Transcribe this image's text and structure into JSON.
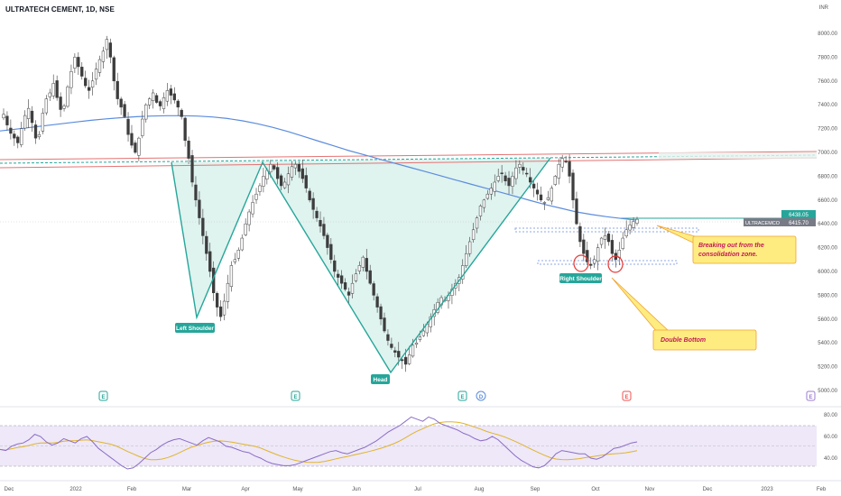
{
  "header": {
    "title": "ULTRATECH CEMENT, 1D, NSE",
    "currency": "INR"
  },
  "chart_data": {
    "type": "candlestick",
    "title": "ULTRATECH CEMENT, 1D, NSE",
    "currency": "INR",
    "symbol": "ULTRACEMCO",
    "price_axis": {
      "ticks": [
        "8000.00",
        "7800.00",
        "7600.00",
        "7400.00",
        "7200.00",
        "7000.00",
        "6800.00",
        "6600.00",
        "6400.00",
        "6200.00",
        "6000.00",
        "5800.00",
        "5600.00",
        "5400.00",
        "5200.00",
        "5000.00"
      ],
      "range": [
        4900,
        8150
      ]
    },
    "time_axis": {
      "ticks": [
        "Dec",
        "2022",
        "Feb",
        "Mar",
        "Apr",
        "May",
        "Jun",
        "Jul",
        "Aug",
        "Sep",
        "Oct",
        "Nov",
        "Dec",
        "2023",
        "Feb"
      ]
    },
    "price_labels": [
      {
        "text": "6438.05",
        "color": "#26a69a",
        "value": 6438.05
      },
      {
        "text": "6415.70",
        "color": "#787b86",
        "value": 6415.7
      }
    ],
    "symbol_label": "ULTRACEMCO",
    "rsi": {
      "ticks": [
        "80.00",
        "60.00",
        "40.00"
      ],
      "bands": [
        70,
        30
      ],
      "mid": 50
    },
    "closes": [
      7320,
      7230,
      7160,
      7120,
      7080,
      7200,
      7310,
      7370,
      7250,
      7120,
      7150,
      7330,
      7450,
      7500,
      7580,
      7460,
      7360,
      7390,
      7550,
      7680,
      7800,
      7720,
      7640,
      7560,
      7520,
      7600,
      7700,
      7780,
      7850,
      7950,
      7800,
      7600,
      7450,
      7380,
      7300,
      7150,
      7060,
      7000,
      7120,
      7280,
      7400,
      7450,
      7500,
      7420,
      7390,
      7460,
      7520,
      7480,
      7440,
      7380,
      7300,
      7100,
      6950,
      6750,
      6600,
      6450,
      6300,
      6150,
      6000,
      5820,
      5700,
      5620,
      5750,
      5900,
      6050,
      6100,
      6180,
      6280,
      6400,
      6500,
      6580,
      6650,
      6720,
      6800,
      6850,
      6900,
      6860,
      6780,
      6720,
      6750,
      6820,
      6880,
      6900,
      6840,
      6780,
      6700,
      6600,
      6520,
      6450,
      6380,
      6300,
      6200,
      6100,
      6000,
      5950,
      5900,
      5850,
      5800,
      5900,
      5980,
      6050,
      6120,
      6000,
      5900,
      5800,
      5700,
      5600,
      5500,
      5420,
      5360,
      5320,
      5280,
      5250,
      5220,
      5300,
      5380,
      5400,
      5450,
      5500,
      5560,
      5620,
      5680,
      5740,
      5780,
      5760,
      5800,
      5850,
      5900,
      5950,
      6050,
      6150,
      6250,
      6350,
      6450,
      6550,
      6600,
      6650,
      6700,
      6750,
      6800,
      6820,
      6760,
      6720,
      6800,
      6870,
      6900,
      6850,
      6820,
      6750,
      6700,
      6650,
      6600,
      6580,
      6620,
      6700,
      6800,
      6900,
      6950,
      6920,
      6800,
      6600,
      6400,
      6250,
      6150,
      6080,
      6050,
      6100,
      6200,
      6280,
      6300,
      6250,
      6150,
      6100,
      6180,
      6280,
      6350,
      6390,
      6420,
      6438
    ],
    "sma_200": [
      7180,
      7195,
      7210,
      7225,
      7240,
      7255,
      7270,
      7282,
      7292,
      7300,
      7305,
      7308,
      7308,
      7305,
      7298,
      7285,
      7265,
      7240,
      7210,
      7175,
      7135,
      7095,
      7055,
      7015,
      6980,
      6945,
      6910,
      6875,
      6840,
      6805,
      6770,
      6735,
      6700,
      6665,
      6630,
      6595,
      6560,
      6530,
      6500,
      6478,
      6460,
      6445,
      6430
    ],
    "rsi_values": [
      48,
      47,
      51,
      53,
      54,
      57,
      62,
      60,
      55,
      52,
      54,
      58,
      56,
      54,
      58,
      60,
      55,
      49,
      45,
      41,
      37,
      33,
      30,
      31,
      35,
      40,
      45,
      48,
      52,
      55,
      57,
      58,
      56,
      54,
      52,
      56,
      59,
      57,
      55,
      51,
      50,
      48,
      46,
      45,
      42,
      40,
      37,
      35,
      34,
      33,
      33,
      34,
      36,
      38,
      40,
      42,
      44,
      46,
      47,
      45,
      44,
      46,
      48,
      50,
      53,
      56,
      60,
      64,
      67,
      70,
      74,
      78,
      76,
      74,
      78,
      76,
      72,
      70,
      68,
      66,
      63,
      61,
      58,
      56,
      57,
      60,
      57,
      52,
      47,
      42,
      38,
      35,
      32,
      31,
      33,
      38,
      44,
      47,
      46,
      45,
      44,
      44,
      40,
      39,
      41,
      45,
      49,
      50,
      52,
      54,
      55
    ]
  },
  "annotations": {
    "left_shoulder": "Left Shoulder",
    "head": "Head",
    "right_shoulder": "Right Shoulder",
    "breakout_note_1": "Breaking out from the",
    "breakout_note_2": "consolidation zone.",
    "double_bottom": "Double Bottom",
    "earnings_marker": "E",
    "dividend_marker": "D"
  },
  "colors": {
    "up": "#26a69a",
    "down": "#ef5350",
    "candle_body": "#3d3d3d",
    "pattern_line": "#26a69a",
    "pattern_fill": "#d9f1ec",
    "sma": "#5b8cde",
    "neckline_red": "#e57373",
    "neckline_green": "#26a69a",
    "zone_blue": "#8ea8e6",
    "rsi_line": "#8b6cc6",
    "rsi_ma": "#e0b42c",
    "rsi_band": "#eee8f8",
    "note_bg": "#ffec80",
    "note_border": "#f0a030",
    "note_text": "#c2185b",
    "circle": "#e53935"
  }
}
